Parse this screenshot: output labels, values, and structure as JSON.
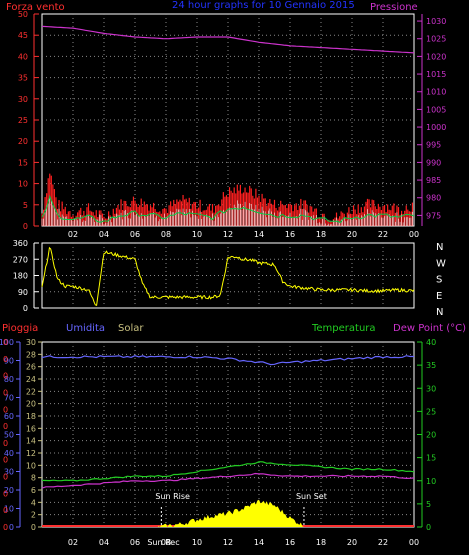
{
  "colors": {
    "wind": "#ff2020",
    "gust": "#ffffff",
    "avg": "#00cc44",
    "pressure": "#cc33cc",
    "direction": "#ffff00",
    "rain": "#ff3030",
    "humidity": "#6666ff",
    "solar": "#c8c080",
    "temperature": "#22cc22",
    "dewpoint": "#cc33cc",
    "tick": "#ffffff",
    "title": "#2233ff",
    "solar_fill": "#ffff00",
    "rain_fill": "#ff3030"
  },
  "title": "24 hour graphs for  10 Gennaio 2015",
  "x_tick_labels": [
    "02",
    "04",
    "06",
    "08",
    "10",
    "12",
    "14",
    "16",
    "18",
    "20",
    "22",
    "00"
  ],
  "top_panel": {
    "left_label": "Forza vento",
    "right_label": "Pressione",
    "left_ticks": [
      "0",
      "5",
      "10",
      "15",
      "20",
      "25",
      "30",
      "35",
      "40",
      "45",
      "50"
    ],
    "right_ticks": [
      "975",
      "980",
      "985",
      "990",
      "995",
      "1000",
      "1005",
      "1010",
      "1015",
      "1020",
      "1025",
      "1030"
    ]
  },
  "dir_panel": {
    "left_ticks": [
      "0",
      "90",
      "180",
      "270",
      "360"
    ],
    "cardinal_labels": [
      "N",
      "W",
      "S",
      "E",
      "N"
    ]
  },
  "bottom_panel": {
    "label_rain": "Pioggia",
    "label_hum": "Umidita",
    "label_solar": "Solar",
    "label_temp": "Temperatura",
    "label_dew": "Dew Point (°C)",
    "rain_ticks": [
      "0",
      "0",
      "0",
      "0",
      "0",
      "0",
      "0",
      "0",
      "0",
      "0",
      "0",
      "0"
    ],
    "hum_ticks": [
      "0",
      "10",
      "20",
      "30",
      "40",
      "50",
      "60",
      "70",
      "80",
      "90",
      "100"
    ],
    "solar_ticks": [
      "0",
      "2",
      "4",
      "6",
      "8",
      "10",
      "12",
      "14",
      "16",
      "18",
      "20",
      "22",
      "24",
      "26",
      "28",
      "30"
    ],
    "temp_ticks": [
      "0",
      "5",
      "10",
      "15",
      "20",
      "25",
      "30",
      "35",
      "40"
    ],
    "sunrise_label": "Sun Rise",
    "sunset_label": "Sun Set",
    "sunrec_label": "Sun Rec"
  },
  "chart_data": [
    {
      "type": "line",
      "title": "24 hour graphs for  10 Gennaio 2015",
      "ylabel": "Forza vento",
      "y2label": "Pressione",
      "ylim": [
        0,
        50
      ],
      "y2lim": [
        972,
        1032
      ],
      "series": [
        {
          "name": "Pressione",
          "x": [
            0,
            2,
            4,
            6,
            8,
            10,
            12,
            14,
            16,
            18,
            20,
            22,
            24
          ],
          "values": [
            1028.5,
            1028,
            1026.5,
            1025.5,
            1025,
            1025.5,
            1025.5,
            1024,
            1023,
            1022.5,
            1022,
            1021.5,
            1021
          ]
        },
        {
          "name": "Forza vento",
          "x": [
            0,
            0.5,
            1,
            1.5,
            2,
            3,
            4,
            5,
            6,
            7,
            8,
            9,
            10,
            11,
            12,
            13,
            14,
            15,
            16,
            17,
            18,
            19,
            20,
            21,
            22,
            23,
            24
          ],
          "values": [
            3,
            13,
            5,
            4,
            3,
            4,
            2,
            5,
            6,
            5,
            4,
            6,
            5,
            4,
            8,
            9,
            7,
            5,
            5,
            5,
            3,
            2,
            4,
            5,
            5,
            4,
            5
          ]
        }
      ]
    },
    {
      "type": "line",
      "ylim": [
        0,
        360
      ],
      "series": [
        {
          "x": [
            0,
            0.5,
            1,
            1.5,
            2,
            2.5,
            3,
            3.5,
            4,
            4.5,
            5,
            5.5,
            6,
            6.5,
            7,
            7.5,
            8,
            9,
            10,
            11,
            11.5,
            12,
            12.5,
            13,
            13.5,
            14,
            15,
            15.5,
            16,
            17,
            18,
            19,
            20,
            21,
            22,
            23,
            24
          ],
          "values": [
            110,
            340,
            160,
            120,
            120,
            110,
            100,
            10,
            310,
            300,
            290,
            280,
            270,
            130,
            60,
            60,
            60,
            60,
            60,
            60,
            70,
            280,
            285,
            270,
            265,
            250,
            240,
            150,
            120,
            110,
            100,
            100,
            100,
            95,
            95,
            100,
            95
          ]
        }
      ]
    },
    {
      "type": "line",
      "ylabel": "Pioggia / Umidita / Solar",
      "y2label": "Dew Point (°C)",
      "ylim": [
        0,
        100
      ],
      "y2lim": [
        0,
        40
      ],
      "series": [
        {
          "name": "Umidita",
          "x": [
            0,
            2,
            4,
            6,
            8,
            10,
            12,
            14,
            15,
            16,
            18,
            20,
            22,
            24
          ],
          "values": [
            92,
            92,
            92,
            92,
            92,
            92,
            91,
            89,
            88,
            89,
            90,
            91,
            92,
            92
          ]
        },
        {
          "name": "Temperatura",
          "x": [
            0,
            2,
            4,
            6,
            8,
            10,
            12,
            14,
            16,
            18,
            20,
            22,
            24
          ],
          "values": [
            10,
            10,
            10.5,
            11,
            11,
            12,
            13,
            14,
            13.5,
            13,
            12.5,
            12.5,
            12
          ]
        },
        {
          "name": "Dew Point (°C)",
          "x": [
            0,
            2,
            4,
            6,
            8,
            10,
            12,
            14,
            16,
            18,
            20,
            22,
            24
          ],
          "values": [
            8.5,
            9,
            9.5,
            10,
            10,
            10.5,
            11,
            11.5,
            11,
            11,
            11,
            11,
            10.5
          ]
        },
        {
          "name": "Solar",
          "x": [
            7.5,
            9,
            10,
            11,
            12,
            13,
            14,
            15,
            16,
            17
          ],
          "values": [
            0,
            0.5,
            1.2,
            1.8,
            2.2,
            3.0,
            4.2,
            3.5,
            1.5,
            0
          ]
        }
      ]
    }
  ]
}
